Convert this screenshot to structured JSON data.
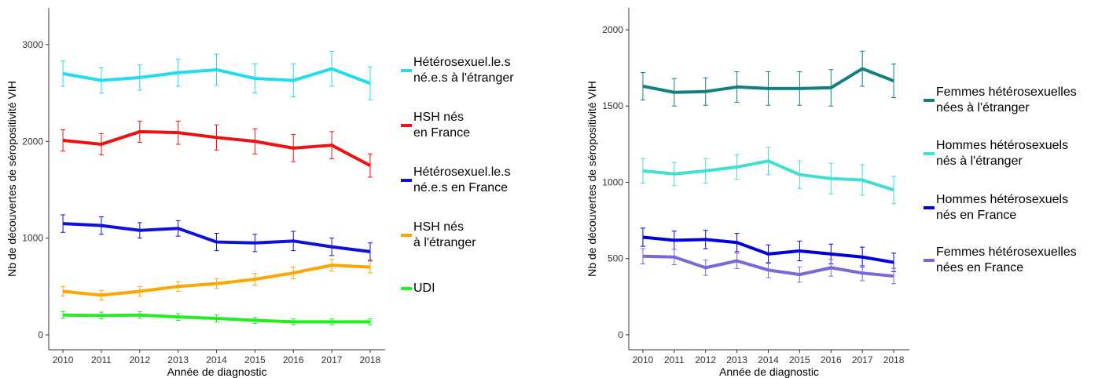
{
  "chart_data": [
    {
      "type": "line",
      "y_label": "Nb de découvertes de séropositivité VIH",
      "x_label": "Année de diagnostic",
      "x": [
        2010,
        2011,
        2012,
        2013,
        2014,
        2015,
        2016,
        2017,
        2018
      ],
      "xlim": [
        2009.63,
        2018.39
      ],
      "xticks": [
        2010,
        2011,
        2012,
        2013,
        2014,
        2015,
        2016,
        2017,
        2018
      ],
      "ylim": [
        -154,
        3380
      ],
      "yticks": [
        0,
        1000,
        2000,
        3000
      ],
      "series": [
        {
          "name": "Hétérosexuel.le.s\nné.e.s à l'étranger",
          "color": "#1fdcf0",
          "values": [
            2700,
            2630,
            2660,
            2710,
            2740,
            2650,
            2630,
            2750,
            2600
          ],
          "errors": [
            130,
            130,
            130,
            140,
            160,
            150,
            170,
            180,
            170
          ]
        },
        {
          "name": "HSH nés\nen France",
          "color": "#ee1111",
          "values": [
            2010,
            1970,
            2100,
            2090,
            2040,
            2000,
            1930,
            1960,
            1750
          ],
          "errors": [
            110,
            110,
            110,
            120,
            130,
            130,
            140,
            140,
            120
          ]
        },
        {
          "name": "Hétérosexuel.le.s\nné.e.s en France",
          "color": "#1010dd",
          "values": [
            1150,
            1130,
            1080,
            1100,
            960,
            950,
            970,
            910,
            860
          ],
          "errors": [
            90,
            90,
            80,
            80,
            90,
            90,
            100,
            90,
            90
          ]
        },
        {
          "name": "HSH nés\nà l'étranger",
          "color": "#ffa500",
          "values": [
            450,
            410,
            450,
            500,
            530,
            575,
            640,
            720,
            700
          ],
          "errors": [
            50,
            50,
            50,
            50,
            50,
            60,
            60,
            60,
            60
          ]
        },
        {
          "name": "UDI",
          "color": "#22ee22",
          "values": [
            205,
            200,
            205,
            185,
            170,
            150,
            135,
            135,
            135
          ],
          "errors": [
            35,
            35,
            35,
            35,
            35,
            30,
            30,
            30,
            30
          ]
        }
      ]
    },
    {
      "type": "line",
      "y_label": "Nb de découvertes de séropositivité VIH",
      "x_label": "Année de diagnostic",
      "x": [
        2010,
        2011,
        2012,
        2013,
        2014,
        2015,
        2016,
        2017,
        2018
      ],
      "xlim": [
        2009.55,
        2018.5
      ],
      "xticks": [
        2010,
        2011,
        2012,
        2013,
        2014,
        2015,
        2016,
        2017,
        2018
      ],
      "ylim": [
        -98,
        2144
      ],
      "yticks": [
        0,
        500,
        1000,
        1500,
        2000
      ],
      "series": [
        {
          "name": "Femmes hétérosexuelles\nnées à l'étranger",
          "color": "#138080",
          "values": [
            1630,
            1590,
            1595,
            1625,
            1615,
            1615,
            1620,
            1745,
            1665
          ],
          "errors": [
            90,
            90,
            90,
            100,
            110,
            110,
            120,
            115,
            110
          ]
        },
        {
          "name": "Hommes hétérosexuels\nnés à l'étranger",
          "color": "#40e0d0",
          "values": [
            1075,
            1055,
            1075,
            1100,
            1140,
            1050,
            1025,
            1015,
            950
          ],
          "errors": [
            80,
            75,
            80,
            80,
            90,
            90,
            100,
            100,
            90
          ]
        },
        {
          "name": "Hommes hétérosexuels\nnés en France",
          "color": "#0000dd",
          "values": [
            640,
            620,
            625,
            605,
            530,
            550,
            530,
            510,
            475
          ],
          "errors": [
            60,
            60,
            60,
            60,
            60,
            65,
            65,
            65,
            60
          ]
        },
        {
          "name": "Femmes hétérosexuelles\nnées en France",
          "color": "#7b68d8",
          "values": [
            515,
            510,
            440,
            485,
            425,
            395,
            440,
            405,
            385
          ],
          "errors": [
            50,
            50,
            50,
            50,
            50,
            50,
            55,
            50,
            50
          ]
        }
      ]
    }
  ]
}
